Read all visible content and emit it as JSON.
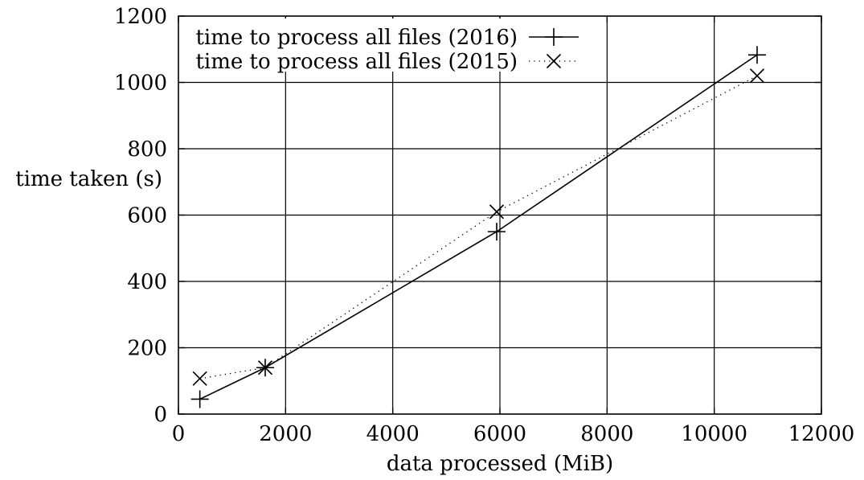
{
  "chart_data": {
    "type": "line",
    "title": "",
    "xlabel": "data processed (MiB)",
    "ylabel": "time taken (s)",
    "xlim": [
      0,
      12000
    ],
    "ylim": [
      0,
      1200
    ],
    "x_ticks": [
      0,
      2000,
      4000,
      6000,
      8000,
      10000,
      12000
    ],
    "y_ticks": [
      0,
      200,
      400,
      600,
      800,
      1000,
      1200
    ],
    "x_tick_labels": [
      "0",
      "2000",
      "4000",
      "6000",
      "8000",
      "10000",
      "12000"
    ],
    "y_tick_labels": [
      "0",
      "200",
      "400",
      "600",
      "800",
      "1000",
      "1200"
    ],
    "grid": true,
    "legend_position": "top-left",
    "series": [
      {
        "name": "time to process all files (2016)",
        "line_style": "solid",
        "marker": "plus",
        "color": "#000000",
        "points": [
          {
            "x": 400,
            "y": 45
          },
          {
            "x": 1620,
            "y": 140
          },
          {
            "x": 5940,
            "y": 550
          },
          {
            "x": 10800,
            "y": 1083
          }
        ]
      },
      {
        "name": "time to process all files (2015)",
        "line_style": "dotted",
        "marker": "cross",
        "color": "#000000",
        "points": [
          {
            "x": 400,
            "y": 107
          },
          {
            "x": 1620,
            "y": 140
          },
          {
            "x": 5940,
            "y": 610
          },
          {
            "x": 10800,
            "y": 1020
          }
        ]
      }
    ]
  }
}
